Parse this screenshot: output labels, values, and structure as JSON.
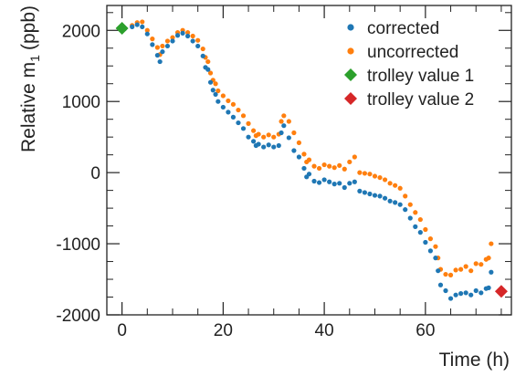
{
  "chart_data": {
    "type": "scatter",
    "xlabel": "Time (h)",
    "ylabel_main": "Relative m",
    "ylabel_sub": "1",
    "ylabel_unit": "(ppb)",
    "xlim": [
      -3,
      77
    ],
    "ylim": [
      -2000,
      2350
    ],
    "xticks": [
      0,
      20,
      40,
      60
    ],
    "yticks": [
      -2000,
      -1000,
      0,
      1000,
      2000
    ],
    "grid": false,
    "legend_position": "top-right",
    "colors": {
      "corrected": "#1f77b4",
      "uncorrected": "#ff7f0e",
      "trolley1": "#2ca02c",
      "trolley2": "#d62728"
    },
    "series": [
      {
        "name": "corrected",
        "marker": "circle",
        "x": [
          0.5,
          2,
          3,
          4,
          5,
          6,
          7,
          7.5,
          8,
          9,
          10,
          11,
          12,
          13,
          14,
          15,
          16,
          16.5,
          17,
          17.5,
          18,
          18.5,
          19,
          20,
          21,
          22,
          23,
          24,
          25,
          26,
          26.5,
          27,
          28,
          29,
          30,
          31,
          31.5,
          32,
          33,
          34,
          35,
          36,
          36.5,
          37,
          38,
          39,
          40,
          41,
          42,
          43,
          44,
          45,
          46,
          47,
          48,
          49,
          50,
          51,
          52,
          53,
          54,
          55,
          56,
          57,
          58,
          59,
          60,
          61,
          62,
          62.5,
          63,
          64,
          65,
          66,
          67,
          68,
          69,
          70,
          71,
          72,
          72.5,
          73
        ],
        "y": [
          2020,
          2050,
          2080,
          2050,
          1950,
          1800,
          1650,
          1560,
          1700,
          1780,
          1850,
          1930,
          1960,
          1920,
          1850,
          1780,
          1640,
          1480,
          1450,
          1270,
          1160,
          1100,
          1000,
          920,
          850,
          780,
          700,
          620,
          500,
          440,
          380,
          400,
          360,
          390,
          360,
          380,
          560,
          660,
          490,
          310,
          220,
          60,
          -60,
          -20,
          -120,
          -140,
          -100,
          -130,
          -160,
          -150,
          -210,
          -150,
          -130,
          -260,
          -280,
          -300,
          -320,
          -330,
          -360,
          -400,
          -420,
          -450,
          -520,
          -640,
          -760,
          -840,
          -980,
          -1100,
          -1200,
          -1380,
          -1580,
          -1660,
          -1770,
          -1720,
          -1700,
          -1690,
          -1720,
          -1660,
          -1690,
          -1630,
          -1620,
          -1400
        ]
      },
      {
        "name": "uncorrected",
        "marker": "circle",
        "x": [
          0.5,
          2,
          3,
          4,
          5,
          6,
          7,
          7.5,
          8,
          9,
          10,
          11,
          12,
          13,
          14,
          15,
          16,
          16.5,
          17,
          17.5,
          18,
          18.5,
          19,
          20,
          21,
          22,
          23,
          24,
          25,
          26,
          26.5,
          27,
          28,
          29,
          30,
          31,
          31.5,
          32,
          33,
          34,
          35,
          36,
          36.5,
          37,
          38,
          39,
          40,
          41,
          42,
          43,
          44,
          45,
          46,
          47,
          48,
          49,
          50,
          51,
          52,
          53,
          54,
          55,
          56,
          57,
          58,
          59,
          60,
          61,
          62,
          62.5,
          63,
          64,
          65,
          66,
          67,
          68,
          69,
          70,
          71,
          72,
          72.5,
          73
        ],
        "y": [
          2030,
          2070,
          2110,
          2120,
          2000,
          1880,
          1760,
          1660,
          1780,
          1850,
          1900,
          1970,
          2000,
          1970,
          1920,
          1860,
          1740,
          1620,
          1560,
          1400,
          1300,
          1250,
          1150,
          1080,
          1010,
          960,
          880,
          800,
          690,
          590,
          520,
          540,
          500,
          530,
          500,
          540,
          720,
          800,
          720,
          560,
          420,
          260,
          150,
          180,
          90,
          60,
          110,
          90,
          70,
          100,
          50,
          150,
          220,
          0,
          -10,
          -20,
          -50,
          -70,
          -100,
          -150,
          -180,
          -220,
          -330,
          -450,
          -560,
          -660,
          -800,
          -930,
          -1040,
          -1200,
          -1360,
          -1430,
          -1440,
          -1370,
          -1360,
          -1320,
          -1380,
          -1280,
          -1290,
          -1220,
          -1200,
          -1000
        ]
      },
      {
        "name": "trolley value 1",
        "marker": "diamond",
        "x": [
          0
        ],
        "y": [
          2030
        ]
      },
      {
        "name": "trolley value 2",
        "marker": "diamond",
        "x": [
          75
        ],
        "y": [
          -1670
        ]
      }
    ]
  }
}
